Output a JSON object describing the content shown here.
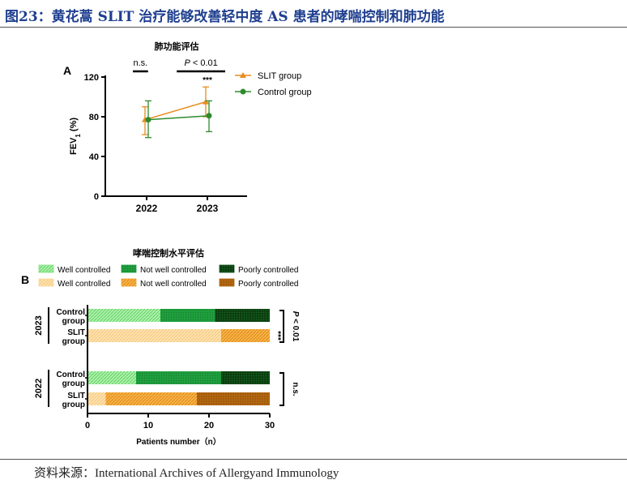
{
  "figure": {
    "title": "图23：黄花蒿 SLIT 治疗能够改善轻中度 AS 患者的哮喘控制和肺功能",
    "source": "资料来源：International Archives of Allergyand Immunology",
    "colors": {
      "title": "#1f3f8f",
      "slit": "#e88b1e",
      "control": "#2e8b2e"
    }
  },
  "chart_data": [
    {
      "type": "line",
      "panel_label": "A",
      "title": "肺功能评估",
      "ylabel_main": "FEV",
      "ylabel_sub": "1",
      "ylabel_unit": " (%)",
      "xlabel": "",
      "categories": [
        "2022",
        "2023"
      ],
      "ylim": [
        0,
        120
      ],
      "yticks": [
        0,
        40,
        80,
        120
      ],
      "yticklabels": [
        "0",
        "40",
        "80",
        "120"
      ],
      "legend_position": "right",
      "series": [
        {
          "name": "SLIT group",
          "color": "#e88b1e",
          "marker": "triangle",
          "values": [
            77,
            95
          ],
          "err_low": [
            62,
            80
          ],
          "err_high": [
            90,
            110
          ]
        },
        {
          "name": "Control group",
          "color": "#2e8b2e",
          "marker": "circle",
          "values": [
            77,
            81
          ],
          "err_low": [
            59,
            65
          ],
          "err_high": [
            96,
            96
          ]
        }
      ],
      "annotations": [
        {
          "text": "n.s.",
          "italic": false,
          "cat_start": 0,
          "cat_end": 0.25
        },
        {
          "text": "P < 0.01",
          "italic_prefix": "P",
          "rest": " < 0.01",
          "cat_start": 0.75,
          "cat_end": 1,
          "stars": "***"
        }
      ]
    },
    {
      "type": "bar",
      "stacked": true,
      "orientation": "horizontal",
      "panel_label": "B",
      "title": "哮喘控制水平评估",
      "xlabel": "Patients number（n）",
      "xlim": [
        0,
        30
      ],
      "xticks": [
        0,
        10,
        20,
        30
      ],
      "xticklabels": [
        "0",
        "10",
        "20",
        "30"
      ],
      "legend": [
        {
          "label": "Well controlled",
          "color": "#7be07b",
          "pattern": "light-green"
        },
        {
          "label": "Not well controlled",
          "color": "#1a9a3a",
          "pattern": "green"
        },
        {
          "label": "Poorly controlled",
          "color": "#0e4d14",
          "pattern": "dark-green"
        },
        {
          "label": "Well controlled",
          "color": "#fcd99a",
          "pattern": "light-orange"
        },
        {
          "label": "Not well controlled",
          "color": "#f2a12e",
          "pattern": "orange"
        },
        {
          "label": "Poorly controlled",
          "color": "#b5690f",
          "pattern": "dark-orange"
        }
      ],
      "groups": [
        {
          "year": "2023",
          "sig": "P < 0.01",
          "sig_stars": "***",
          "rows": [
            {
              "label": [
                "Control",
                "group"
              ],
              "values": [
                12,
                9,
                9
              ],
              "colorset": "green"
            },
            {
              "label": [
                "SLIT",
                "group"
              ],
              "values": [
                22,
                8,
                0
              ],
              "colorset": "orange"
            }
          ]
        },
        {
          "year": "2022",
          "sig": "n.s.",
          "sig_stars": "",
          "rows": [
            {
              "label": [
                "Control",
                "group"
              ],
              "values": [
                8,
                14,
                8
              ],
              "colorset": "green"
            },
            {
              "label": [
                "SLIT",
                "group"
              ],
              "values": [
                3,
                15,
                12
              ],
              "colorset": "orange"
            }
          ]
        }
      ]
    }
  ]
}
